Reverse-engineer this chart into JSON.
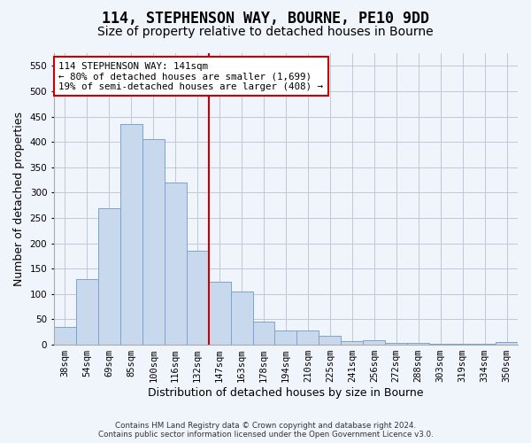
{
  "title": "114, STEPHENSON WAY, BOURNE, PE10 9DD",
  "subtitle": "Size of property relative to detached houses in Bourne",
  "xlabel": "Distribution of detached houses by size in Bourne",
  "ylabel": "Number of detached properties",
  "bar_labels": [
    "38sqm",
    "54sqm",
    "69sqm",
    "85sqm",
    "100sqm",
    "116sqm",
    "132sqm",
    "147sqm",
    "163sqm",
    "178sqm",
    "194sqm",
    "210sqm",
    "225sqm",
    "241sqm",
    "256sqm",
    "272sqm",
    "288sqm",
    "303sqm",
    "319sqm",
    "334sqm",
    "350sqm"
  ],
  "bar_values": [
    35,
    130,
    270,
    435,
    405,
    320,
    185,
    125,
    105,
    45,
    28,
    28,
    17,
    8,
    9,
    3,
    3,
    2,
    2,
    2,
    5
  ],
  "bar_color": "#c9d9ed",
  "bar_edge_color": "#7ba3cc",
  "vline_pos": 6.5,
  "vline_color": "#cc0000",
  "annotation_text": "114 STEPHENSON WAY: 141sqm\n← 80% of detached houses are smaller (1,699)\n19% of semi-detached houses are larger (408) →",
  "annotation_box_color": "#ffffff",
  "annotation_box_edge": "#cc0000",
  "ylim": [
    0,
    575
  ],
  "yticks": [
    0,
    50,
    100,
    150,
    200,
    250,
    300,
    350,
    400,
    450,
    500,
    550
  ],
  "footer_line1": "Contains HM Land Registry data © Crown copyright and database right 2024.",
  "footer_line2": "Contains public sector information licensed under the Open Government Licence v3.0.",
  "title_fontsize": 12,
  "subtitle_fontsize": 10,
  "tick_fontsize": 7.5,
  "ylabel_fontsize": 9,
  "xlabel_fontsize": 9,
  "background_color": "#f0f4fb",
  "grid_color": "#c0c8d8"
}
